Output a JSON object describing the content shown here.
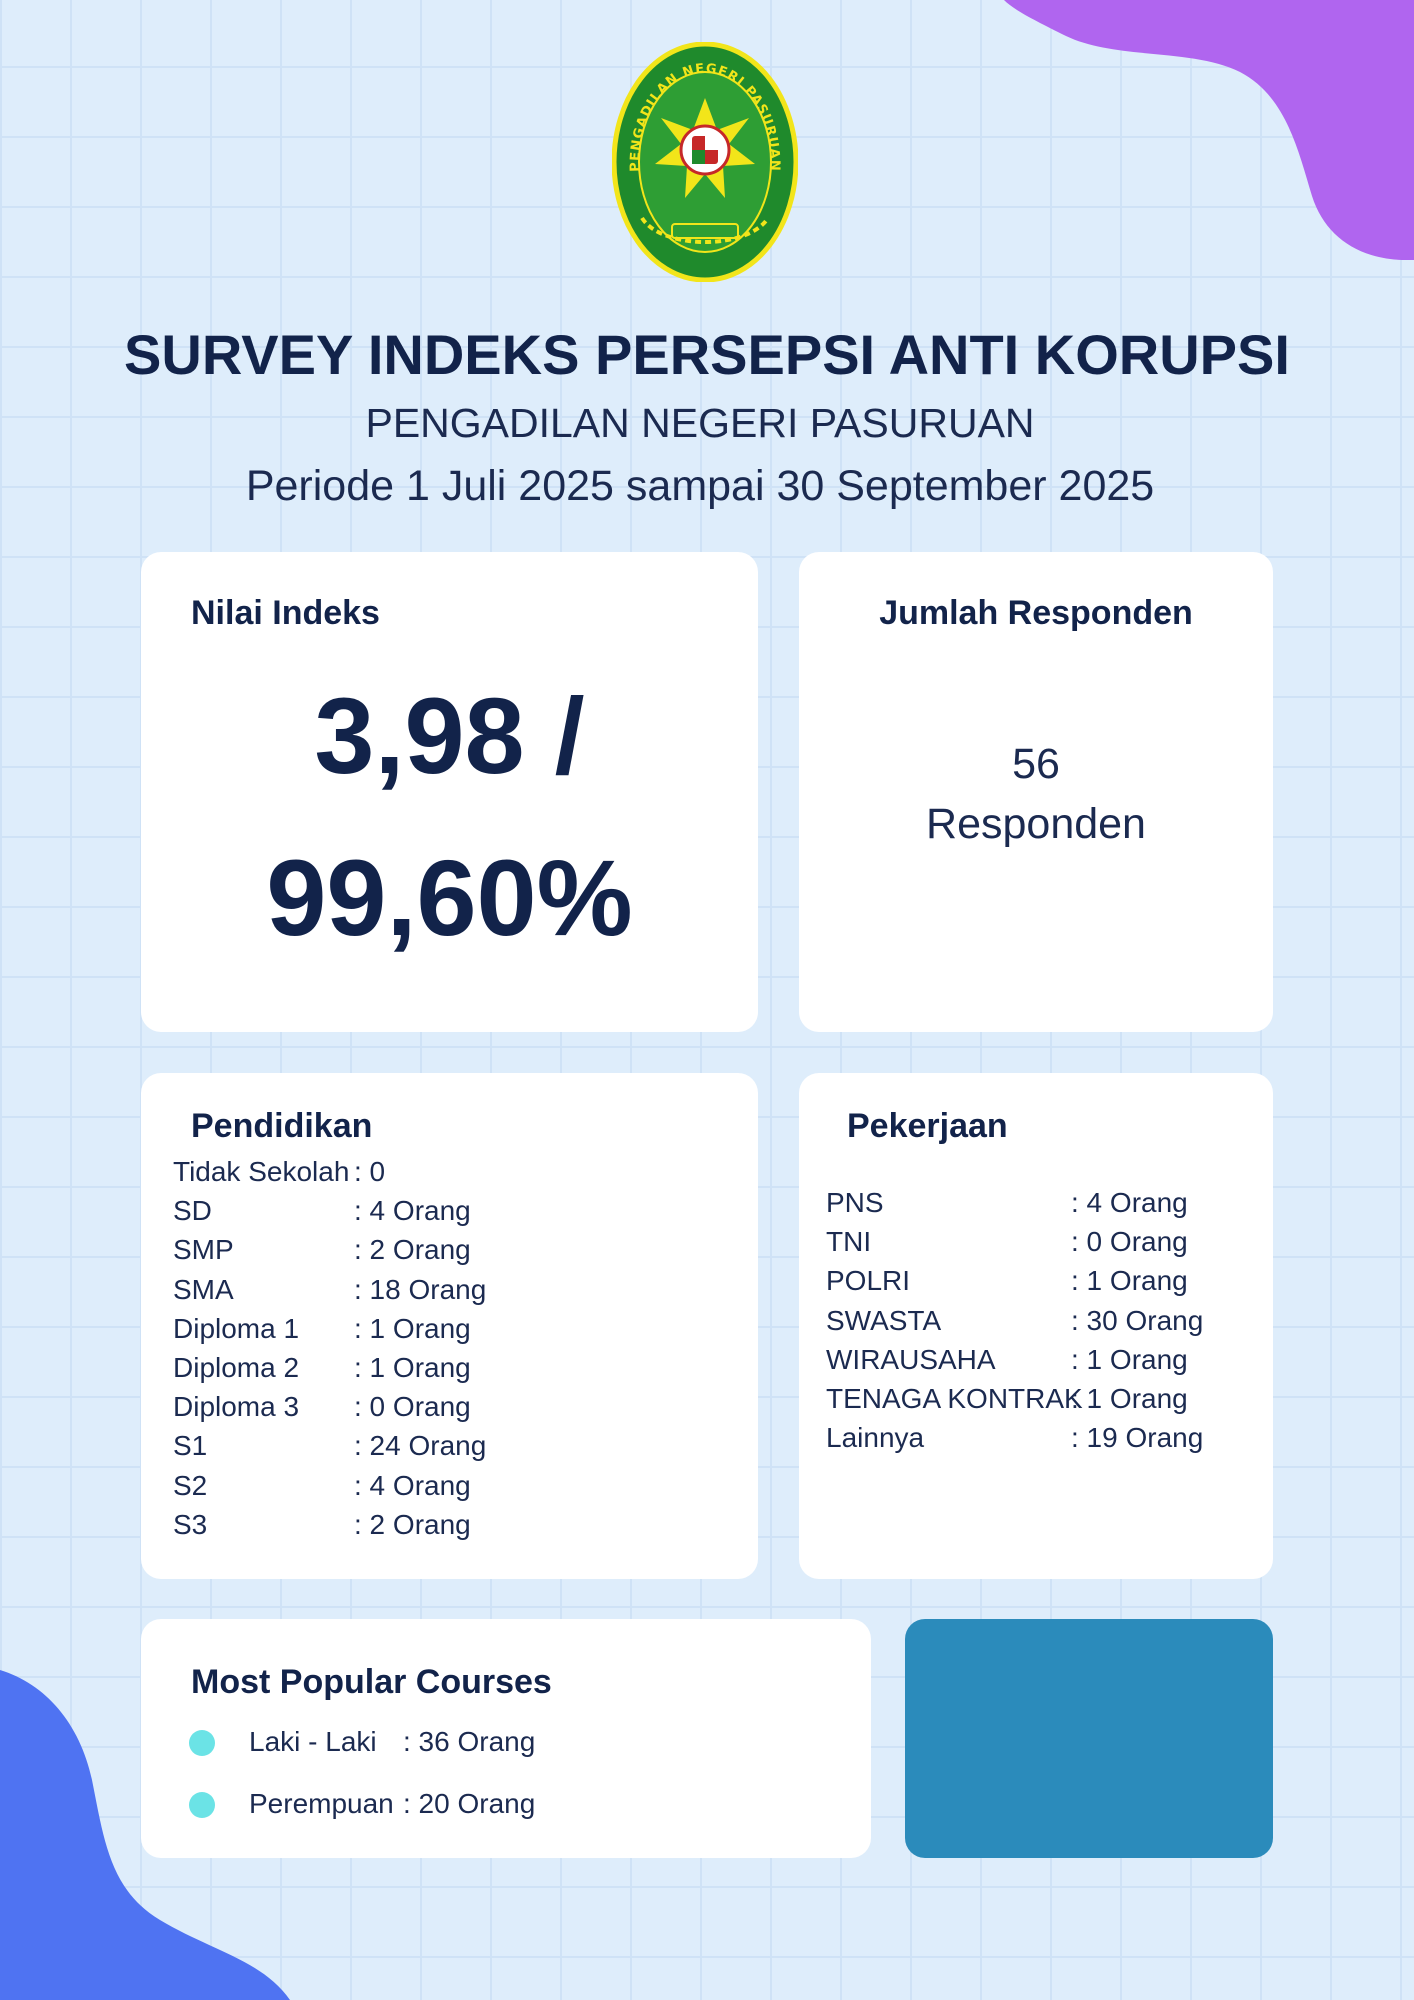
{
  "header": {
    "logo_text": "PENGADILAN NEGERI PASURUAN",
    "title": "SURVEY INDEKS PERSEPSI ANTI KORUPSI",
    "subtitle": "PENGADILAN NEGERI PASURUAN",
    "period": "Periode 1 Juli 2025 sampai 30 September 2025"
  },
  "index": {
    "title": "Nilai Indeks",
    "line1": "3,98 /",
    "line2": "99,60%"
  },
  "responden": {
    "title": "Jumlah Responden",
    "count": "56",
    "label": "Responden"
  },
  "pendidikan": {
    "title": "Pendidikan",
    "rows": [
      {
        "label": "Tidak Sekolah",
        "value": ":  0"
      },
      {
        "label": "SD",
        "value": ":  4 Orang"
      },
      {
        "label": "SMP",
        "value": ":  2 Orang"
      },
      {
        "label": "SMA",
        "value": ": 18 Orang"
      },
      {
        "label": "Diploma 1",
        "value": ": 1 Orang"
      },
      {
        "label": "Diploma 2",
        "value": ": 1 Orang"
      },
      {
        "label": "Diploma 3",
        "value": ":  0 Orang"
      },
      {
        "label": "S1",
        "value": ": 24 Orang"
      },
      {
        "label": "S2",
        "value": ": 4 Orang"
      },
      {
        "label": "S3",
        "value": ": 2 Orang"
      }
    ]
  },
  "pekerjaan": {
    "title": "Pekerjaan",
    "rows": [
      {
        "label": "PNS",
        "value": ": 4 Orang"
      },
      {
        "label": "TNI",
        "value": ": 0 Orang"
      },
      {
        "label": "POLRI",
        "value": ": 1 Orang"
      },
      {
        "label": "SWASTA",
        "value": ": 30 Orang"
      },
      {
        "label": "WIRAUSAHA",
        "value": ": 1 Orang"
      },
      {
        "label": "TENAGA KONTRAK",
        "value": ": 1 Orang"
      },
      {
        "label": "Lainnya",
        "value": ":  19 Orang"
      }
    ]
  },
  "gender": {
    "title": "Most Popular Courses",
    "rows": [
      {
        "label": "Laki - Laki",
        "value": ":  36 Orang"
      },
      {
        "label": "Perempuan",
        "value": ":  20 Orang"
      }
    ]
  },
  "colors": {
    "background": "#deedfb",
    "navy_text": "#12234a",
    "blob_purple": "#b065ef",
    "blob_blue": "#4f73f2",
    "dot_cyan": "#6be3e6",
    "card_blue": "#2b8bbb",
    "logo_green": "#1f8a2c",
    "logo_yellow": "#f2e51a"
  }
}
